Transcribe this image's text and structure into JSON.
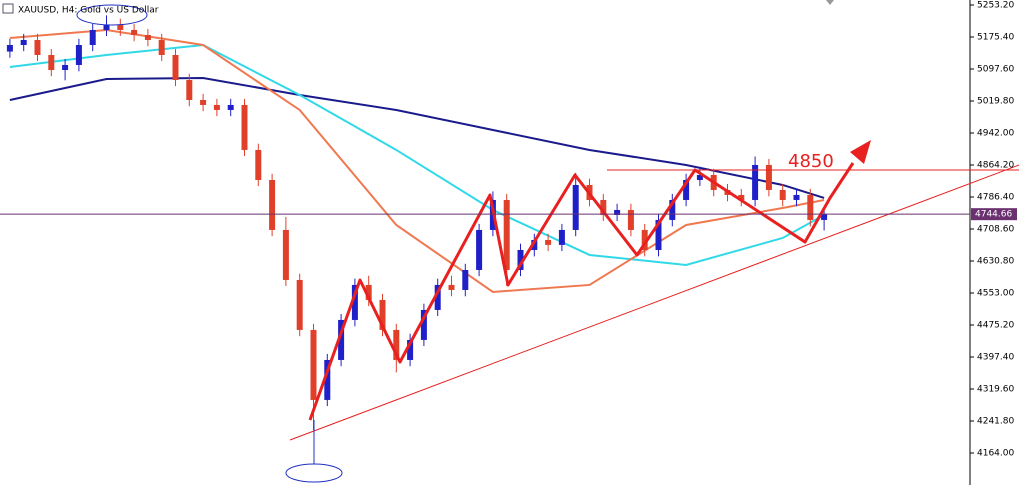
{
  "chart_data": {
    "type": "candlestick",
    "title": "XAUUSD, H4:  Gold vs US Dollar",
    "annotation": "4850",
    "current_price": {
      "value": 4744.66,
      "label": "4744.66"
    },
    "ylim": [
      4086.2,
      5265.4
    ],
    "yticks": [
      {
        "value": 5253.2,
        "label": "5253.20"
      },
      {
        "value": 5175.4,
        "label": "5175.40"
      },
      {
        "value": 5097.6,
        "label": "5097.60"
      },
      {
        "value": 5019.8,
        "label": "5019.80"
      },
      {
        "value": 4942,
        "label": "4942.00"
      },
      {
        "value": 4864.2,
        "label": "4864.20"
      },
      {
        "value": 4786.4,
        "label": "4786.40"
      },
      {
        "value": 4708.6,
        "label": "4708.60"
      },
      {
        "value": 4630.8,
        "label": "4630.80"
      },
      {
        "value": 4553,
        "label": "4553.00"
      },
      {
        "value": 4475.2,
        "label": "4475.20"
      },
      {
        "value": 4397.4,
        "label": "4397.40"
      },
      {
        "value": 4319.6,
        "label": "4319.60"
      },
      {
        "value": 4241.8,
        "label": "4241.80"
      },
      {
        "value": 4164,
        "label": "4164.00"
      }
    ],
    "up_color": "#2020c8",
    "down_color": "#e0402a",
    "open": [
      5140.0,
      5156.0,
      5168.2,
      5131.7,
      5095.2,
      5107.4,
      5156.0,
      5192.5,
      5204.6,
      5192.5,
      5180.3,
      5168.2,
      5131.7,
      5070.9,
      5022.3,
      5010.2,
      4998.0,
      5010.2,
      4900.8,
      4827.8,
      4706.3,
      4584.7,
      4463.2,
      4293.0,
      4390.2,
      4487.5,
      4572.6,
      4536.1,
      4463.2,
      4390.2,
      4438.9,
      4511.8,
      4572.6,
      4560.4,
      4609.0,
      4706.3,
      4779.2,
      4609.0,
      4657.6,
      4682.0,
      4670.0,
      4706.3,
      4815.7,
      4779.2,
      4742.7,
      4754.9,
      4706.3,
      4657.6,
      4730.6,
      4779.2,
      4827.8,
      4840.0,
      4803.5,
      4791.4,
      4779.2,
      4864.3,
      4803.5,
      4779.2,
      4791.4,
      4730.6
    ],
    "high": [
      5171,
      5183,
      5183,
      5146,
      5122,
      5171,
      5207,
      5228,
      5220,
      5207,
      5195,
      5183,
      5146,
      5086,
      5037,
      5025,
      5025,
      5025,
      4916,
      4843,
      4738,
      4600,
      4478,
      4405,
      4502,
      4588,
      4595,
      4551,
      4478,
      4454,
      4527,
      4588,
      4595,
      4624,
      4721,
      4800,
      4794,
      4673,
      4697,
      4697,
      4721,
      4845,
      4831,
      4794,
      4770,
      4770,
      4721,
      4746,
      4794,
      4843,
      4860,
      4855,
      4818,
      4806,
      4885,
      4879,
      4818,
      4806,
      4806,
      4760
    ],
    "low": [
      5125,
      5141,
      5117,
      5080,
      5070,
      5092,
      5141,
      5178,
      5178,
      5165,
      5153,
      5117,
      5056,
      5007,
      4995,
      4983,
      4983,
      4886,
      4813,
      4691,
      4570,
      4448,
      4220,
      4278,
      4375,
      4472,
      4521,
      4448,
      4360,
      4375,
      4424,
      4497,
      4545,
      4545,
      4594,
      4691,
      4570,
      4594,
      4642,
      4655,
      4655,
      4691,
      4764,
      4728,
      4728,
      4691,
      4642,
      4642,
      4715,
      4764,
      4813,
      4788,
      4776,
      4764,
      4764,
      4788,
      4764,
      4764,
      4715,
      4705
    ],
    "close": [
      5156.0,
      5168.2,
      5131.7,
      5095.2,
      5107.4,
      5156.0,
      5192.5,
      5204.6,
      5192.5,
      5180.3,
      5168.2,
      5131.7,
      5070.9,
      5022.3,
      5010.2,
      4998.0,
      5010.2,
      4900.8,
      4827.8,
      4706.3,
      4584.7,
      4463.2,
      4293.0,
      4390.2,
      4487.5,
      4572.6,
      4536.1,
      4463.2,
      4390.2,
      4438.9,
      4511.8,
      4572.6,
      4560.4,
      4609.0,
      4706.3,
      4779.2,
      4609.0,
      4657.6,
      4682.0,
      4670.0,
      4706.3,
      4815.7,
      4779.2,
      4742.7,
      4754.9,
      4706.3,
      4657.6,
      4730.6,
      4779.2,
      4827.8,
      4840.0,
      4803.5,
      4791.4,
      4779.2,
      4864.3,
      4803.5,
      4779.2,
      4791.4,
      4730.6,
      4744.7
    ],
    "series": [
      {
        "color": "#1a1a8c",
        "x": [
          0,
          7,
          14,
          21,
          28,
          35,
          42,
          49,
          56,
          59
        ],
        "values": [
          5022.3,
          5073.4,
          5075.8,
          5034.5,
          4998.0,
          4949.4,
          4900.8,
          4864.3,
          4815.7,
          4784.1
        ]
      },
      {
        "color": "#30d8e8",
        "x": [
          0,
          7,
          14,
          21,
          28,
          35,
          42,
          49,
          56,
          59
        ],
        "values": [
          5102.5,
          5131.7,
          5156.0,
          5034.5,
          4900.8,
          4754.9,
          4645.5,
          4621.2,
          4686.8,
          4742.7
        ]
      },
      {
        "color": "#f07850",
        "x": [
          0,
          7,
          14,
          21,
          28,
          35,
          42,
          49,
          56,
          59
        ],
        "values": [
          5173.0,
          5192.5,
          5156.0,
          4998.0,
          4718.4,
          4555.5,
          4572.6,
          4718.4,
          4759.7,
          4779.2
        ]
      }
    ]
  }
}
